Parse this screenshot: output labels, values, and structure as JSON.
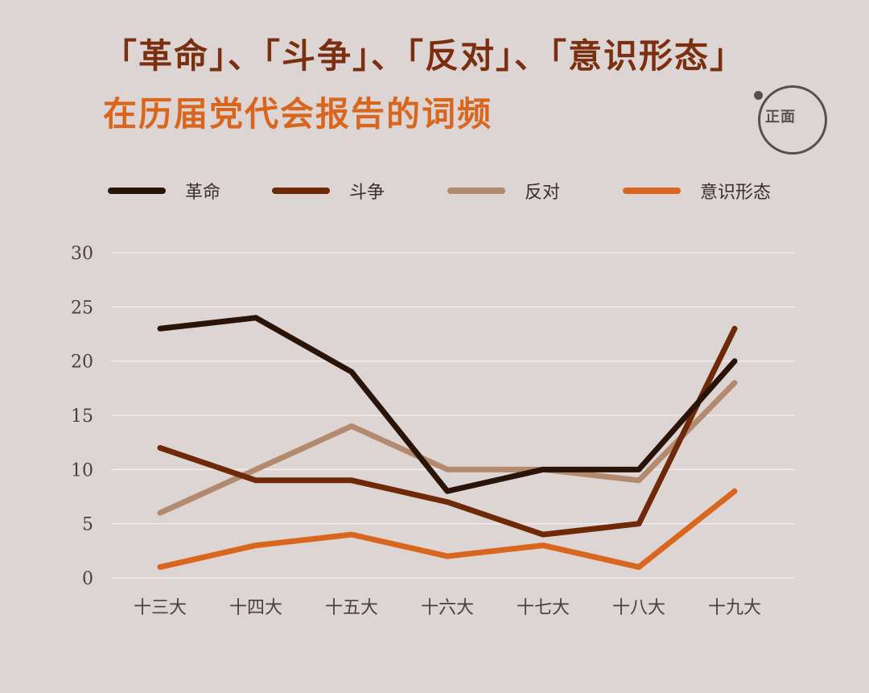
{
  "title": {
    "line1": "「革命」、「斗争」、「反对」、「意识形态」",
    "line2": "在历届党代会报告的词频"
  },
  "logo": {
    "text": "正面"
  },
  "colors": {
    "background": "#ddd5d3",
    "revolution": "#2a1408",
    "struggle": "#6e2a08",
    "oppose": "#b38a6e",
    "ideology": "#d9661e"
  },
  "chart_data": {
    "type": "line",
    "categories": [
      "十三大",
      "十四大",
      "十五大",
      "十六大",
      "十七大",
      "十八大",
      "十九大"
    ],
    "ylim": [
      0,
      30
    ],
    "yticks": [
      "0",
      "5",
      "10",
      "15",
      "20",
      "25",
      "30"
    ],
    "grid": true,
    "legend_position": "top",
    "series": [
      {
        "name": "革命",
        "color": "#2a1408",
        "values": [
          23,
          24,
          19,
          8,
          10,
          10,
          20
        ]
      },
      {
        "name": "斗争",
        "color": "#6e2a08",
        "values": [
          12,
          9,
          9,
          7,
          4,
          5,
          23
        ]
      },
      {
        "name": "反对",
        "color": "#b38a6e",
        "values": [
          6,
          10,
          14,
          10,
          10,
          9,
          18
        ]
      },
      {
        "name": "意识形态",
        "color": "#d9661e",
        "values": [
          1,
          3,
          4,
          2,
          3,
          1,
          8
        ]
      }
    ]
  }
}
